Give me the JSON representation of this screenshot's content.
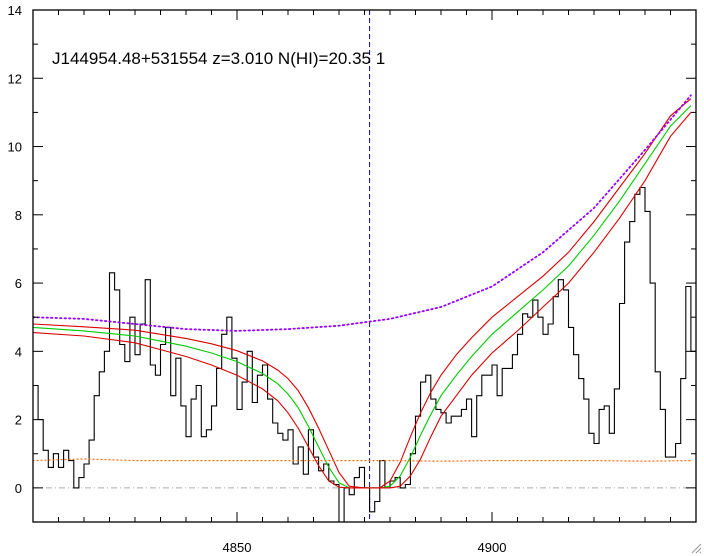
{
  "chart_data": {
    "type": "line",
    "title": "J144954.48+531554 z=3.010 N(HI)=20.35 1",
    "xlabel": "",
    "ylabel": "",
    "xlim": [
      4810,
      4940
    ],
    "ylim": [
      -1,
      14
    ],
    "x_ticks": [
      4850,
      4900
    ],
    "y_ticks": [
      0,
      2,
      4,
      6,
      8,
      10,
      12,
      14
    ],
    "grid": false,
    "legend": "none",
    "marker_x": 4876,
    "zero_level": 0,
    "colors": {
      "flux": "#000000",
      "model": "#00cc00",
      "model_bounds": "#dd0000",
      "continuum": "#9900ff",
      "error": "#ff6600",
      "marker": "#0000cc",
      "zero_line": "#aaaaaa"
    },
    "series": [
      {
        "kind": "flux-histogram",
        "x": [
          4810,
          4811,
          4812,
          4813,
          4814,
          4815,
          4816,
          4817,
          4818,
          4819,
          4820,
          4821,
          4822,
          4823,
          4824,
          4825,
          4826,
          4827,
          4828,
          4829,
          4830,
          4831,
          4832,
          4833,
          4834,
          4835,
          4836,
          4837,
          4838,
          4839,
          4840,
          4841,
          4842,
          4843,
          4844,
          4845,
          4846,
          4847,
          4848,
          4849,
          4850,
          4851,
          4852,
          4853,
          4854,
          4855,
          4856,
          4857,
          4858,
          4859,
          4860,
          4861,
          4862,
          4863,
          4864,
          4865,
          4866,
          4867,
          4868,
          4869,
          4870,
          4871,
          4872,
          4873,
          4874,
          4875,
          4876,
          4877,
          4878,
          4879,
          4880,
          4881,
          4882,
          4883,
          4884,
          4885,
          4886,
          4887,
          4888,
          4889,
          4890,
          4891,
          4892,
          4893,
          4894,
          4895,
          4896,
          4897,
          4898,
          4899,
          4900,
          4901,
          4902,
          4903,
          4904,
          4905,
          4906,
          4907,
          4908,
          4909,
          4910,
          4911,
          4912,
          4913,
          4914,
          4915,
          4916,
          4917,
          4918,
          4919,
          4920,
          4921,
          4922,
          4923,
          4924,
          4925,
          4926,
          4927,
          4928,
          4929,
          4930,
          4931,
          4932,
          4933,
          4934,
          4935,
          4936,
          4937,
          4938,
          4939
        ],
        "values": [
          3.0,
          2.0,
          1.1,
          0.6,
          1.0,
          0.6,
          1.1,
          0.8,
          0.0,
          0.3,
          0.7,
          1.4,
          2.7,
          3.4,
          4.0,
          6.3,
          5.8,
          4.2,
          3.7,
          5.0,
          3.9,
          4.8,
          6.1,
          3.6,
          3.3,
          4.2,
          4.7,
          2.7,
          3.8,
          2.4,
          1.5,
          2.6,
          3.0,
          1.5,
          1.7,
          2.4,
          3.5,
          4.5,
          5.0,
          3.8,
          2.3,
          3.1,
          4.0,
          2.5,
          3.3,
          3.6,
          2.6,
          1.9,
          1.6,
          1.4,
          1.7,
          0.7,
          1.2,
          0.4,
          1.7,
          0.9,
          0.5,
          0.7,
          0.2,
          0.1,
          -1.0,
          0.0,
          -0.2,
          0.3,
          0.6,
          0.0,
          -0.7,
          -0.4,
          0.8,
          0.0,
          0.2,
          0.3,
          0.0,
          0.1,
          1.0,
          2.1,
          3.1,
          3.3,
          2.6,
          2.3,
          2.2,
          1.9,
          2.1,
          2.1,
          2.3,
          2.6,
          1.5,
          2.7,
          3.3,
          3.3,
          3.6,
          2.7,
          3.5,
          3.5,
          3.9,
          4.5,
          5.1,
          5.0,
          5.5,
          5.0,
          4.5,
          4.8,
          5.6,
          6.1,
          5.8,
          4.7,
          3.9,
          3.2,
          2.6,
          1.6,
          1.3,
          2.3,
          2.4,
          1.6,
          2.9,
          5.4,
          7.2,
          7.8,
          8.6,
          8.8,
          8.1,
          6.0,
          3.4,
          2.3,
          0.9,
          0.9,
          1.3,
          3.2,
          5.9,
          4.0
        ]
      },
      {
        "kind": "model",
        "x": [
          4810,
          4820,
          4830,
          4835,
          4840,
          4845,
          4850,
          4855,
          4858,
          4860,
          4862,
          4864,
          4866,
          4868,
          4870,
          4872,
          4875,
          4878,
          4880,
          4882,
          4884,
          4886,
          4888,
          4890,
          4893,
          4896,
          4900,
          4905,
          4910,
          4915,
          4920,
          4925,
          4930,
          4935,
          4939
        ],
        "values": [
          4.7,
          4.6,
          4.45,
          4.3,
          4.15,
          3.95,
          3.7,
          3.35,
          3.05,
          2.75,
          2.35,
          1.8,
          1.2,
          0.6,
          0.15,
          0.0,
          0.0,
          0.0,
          0.05,
          0.35,
          0.9,
          1.55,
          2.15,
          2.7,
          3.3,
          3.85,
          4.5,
          5.15,
          5.8,
          6.5,
          7.4,
          8.4,
          9.5,
          10.6,
          11.2
        ]
      },
      {
        "kind": "model-upper",
        "x": [
          4810,
          4820,
          4830,
          4835,
          4840,
          4845,
          4850,
          4855,
          4858,
          4860,
          4862,
          4864,
          4866,
          4868,
          4870,
          4872,
          4875,
          4878,
          4880,
          4882,
          4884,
          4886,
          4888,
          4890,
          4893,
          4896,
          4900,
          4905,
          4910,
          4915,
          4920,
          4925,
          4930,
          4935,
          4939
        ],
        "values": [
          4.8,
          4.72,
          4.62,
          4.5,
          4.38,
          4.22,
          4.02,
          3.72,
          3.45,
          3.2,
          2.85,
          2.35,
          1.75,
          1.1,
          0.45,
          0.05,
          0.0,
          0.0,
          0.2,
          0.75,
          1.5,
          2.2,
          2.8,
          3.3,
          3.9,
          4.4,
          5.0,
          5.6,
          6.2,
          6.9,
          7.8,
          8.8,
          9.8,
          10.9,
          11.4
        ]
      },
      {
        "kind": "model-lower",
        "x": [
          4810,
          4820,
          4830,
          4835,
          4840,
          4845,
          4850,
          4855,
          4858,
          4860,
          4862,
          4864,
          4866,
          4868,
          4870,
          4872,
          4875,
          4878,
          4880,
          4882,
          4884,
          4886,
          4888,
          4890,
          4893,
          4896,
          4900,
          4905,
          4910,
          4915,
          4920,
          4925,
          4930,
          4935,
          4939
        ],
        "values": [
          4.55,
          4.45,
          4.25,
          4.05,
          3.85,
          3.6,
          3.3,
          2.9,
          2.55,
          2.2,
          1.75,
          1.2,
          0.65,
          0.2,
          0.02,
          0.0,
          0.0,
          0.0,
          0.0,
          0.05,
          0.35,
          0.85,
          1.5,
          2.1,
          2.7,
          3.3,
          3.95,
          4.6,
          5.3,
          6.0,
          6.9,
          7.9,
          9.0,
          10.3,
          11.0
        ]
      },
      {
        "kind": "continuum",
        "x": [
          4810,
          4820,
          4830,
          4840,
          4850,
          4860,
          4870,
          4880,
          4890,
          4900,
          4910,
          4920,
          4930,
          4939
        ],
        "values": [
          5.0,
          4.95,
          4.8,
          4.65,
          4.6,
          4.65,
          4.75,
          4.95,
          5.3,
          5.9,
          6.9,
          8.2,
          9.9,
          11.5
        ]
      },
      {
        "kind": "error",
        "x": [
          4810,
          4820,
          4830,
          4840,
          4850,
          4860,
          4870,
          4880,
          4890,
          4900,
          4910,
          4920,
          4930,
          4939
        ],
        "values": [
          0.8,
          0.85,
          0.8,
          0.8,
          0.8,
          0.8,
          0.8,
          0.8,
          0.78,
          0.8,
          0.8,
          0.8,
          0.78,
          0.8
        ]
      }
    ]
  }
}
